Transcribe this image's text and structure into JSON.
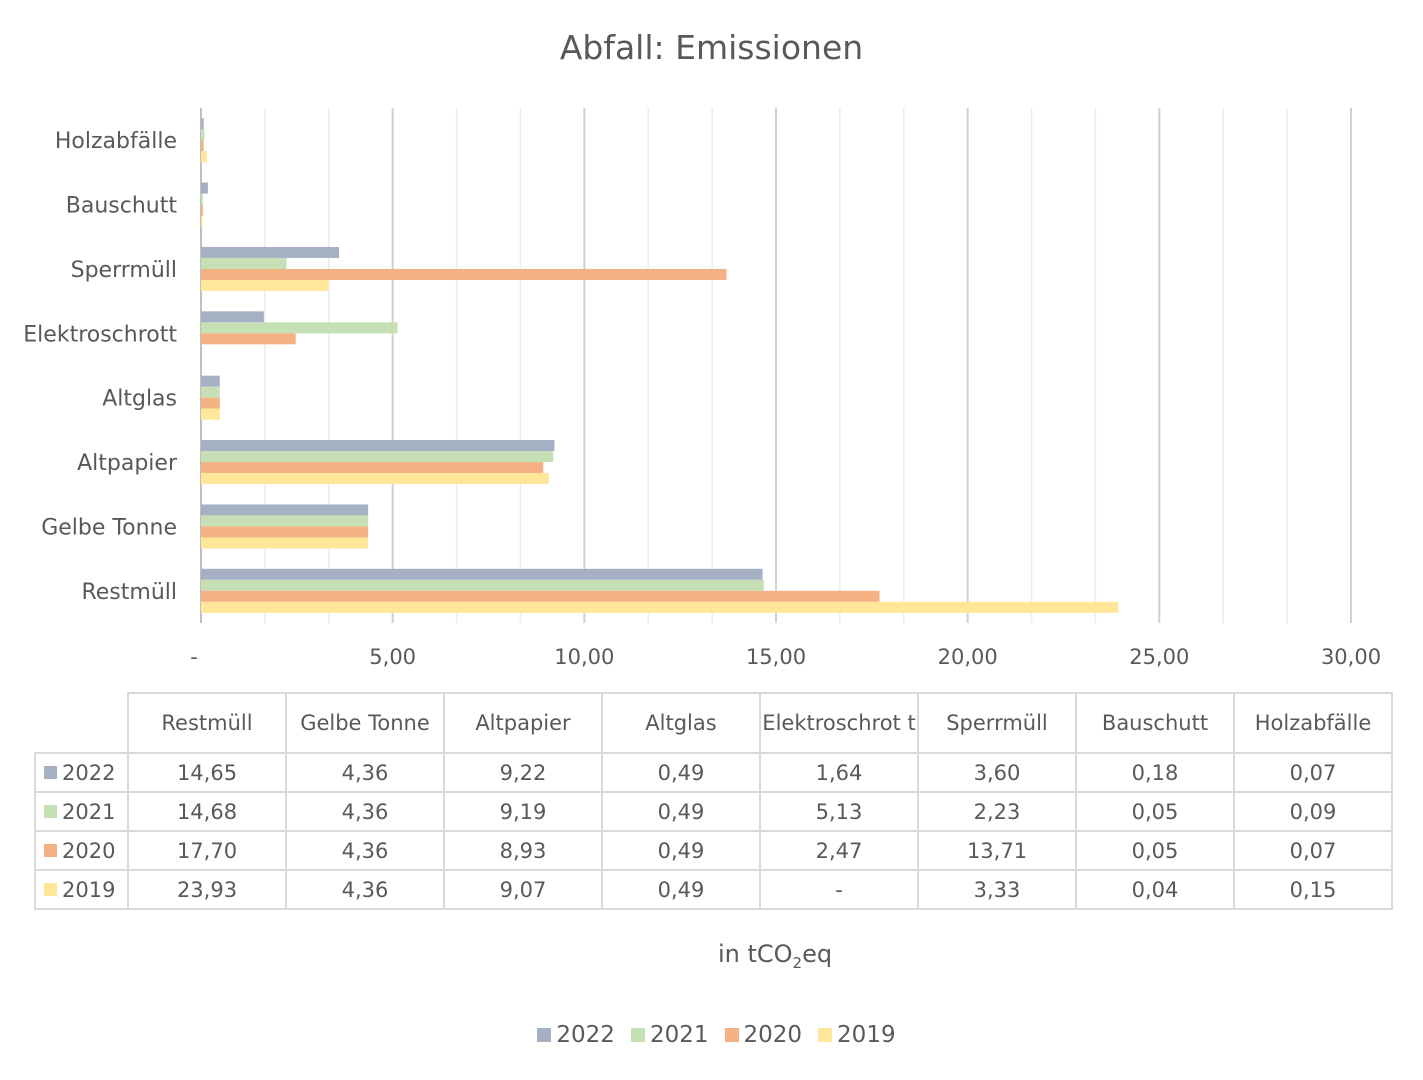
{
  "chart_data": {
    "type": "bar",
    "orientation": "horizontal",
    "title": "Abfall: Emissionen",
    "categories": [
      "Restmüll",
      "Gelbe Tonne",
      "Altpapier",
      "Altglas",
      "Elektroschrott",
      "Sperrmüll",
      "Bauschutt",
      "Holzabfälle"
    ],
    "table_headers": [
      "Restmüll",
      "Gelbe Tonne",
      "Altpapier",
      "Altglas",
      "Elektroschrot t",
      "Sperrmüll",
      "Bauschutt",
      "Holzabfälle"
    ],
    "series": [
      {
        "name": "2022",
        "color": "#a5b0c3",
        "values": [
          14.65,
          4.36,
          9.22,
          0.49,
          1.64,
          3.6,
          0.18,
          0.07
        ],
        "labels": [
          "14,65",
          "4,36",
          "9,22",
          "0,49",
          "1,64",
          "3,60",
          "0,18",
          "0,07"
        ]
      },
      {
        "name": "2021",
        "color": "#c5e0b4",
        "values": [
          14.68,
          4.36,
          9.19,
          0.49,
          5.13,
          2.23,
          0.05,
          0.09
        ],
        "labels": [
          "14,68",
          "4,36",
          "9,19",
          "0,49",
          "5,13",
          "2,23",
          "0,05",
          "0,09"
        ]
      },
      {
        "name": "2020",
        "color": "#f4b183",
        "values": [
          17.7,
          4.36,
          8.93,
          0.49,
          2.47,
          13.71,
          0.05,
          0.07
        ],
        "labels": [
          "17,70",
          "4,36",
          "8,93",
          "0,49",
          "2,47",
          "13,71",
          "0,05",
          "0,07"
        ]
      },
      {
        "name": "2019",
        "color": "#ffe699",
        "values": [
          23.93,
          4.36,
          9.07,
          0.49,
          0,
          3.33,
          0.04,
          0.15
        ],
        "labels": [
          "23,93",
          "4,36",
          "9,07",
          "0,49",
          "-",
          "3,33",
          "0,04",
          "0,15"
        ]
      }
    ],
    "xlim": [
      0,
      30
    ],
    "x_ticks": [
      0,
      5,
      10,
      15,
      20,
      25,
      30
    ],
    "x_tick_labels": [
      "-",
      "5,00",
      "10,00",
      "15,00",
      "20,00",
      "25,00",
      "30,00"
    ],
    "unit_label": {
      "text": "in tCO",
      "sub": "2",
      "tail": "eq"
    },
    "legend_position": "bottom",
    "gridlines": true
  }
}
